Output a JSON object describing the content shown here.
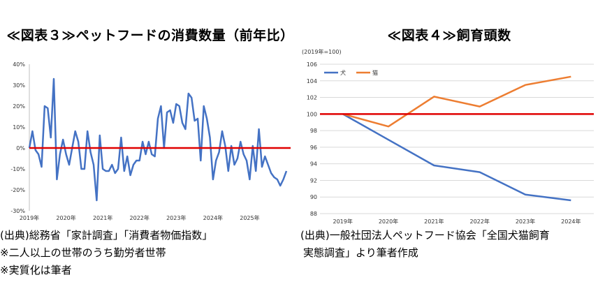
{
  "left": {
    "title": "≪図表３≫ペットフードの消費数量（前年比）",
    "notes": [
      "(出典)総務省「家計調査」「消費者物価指数」",
      "※二人以上の世帯のうち勤労者世帯",
      "※実質化は筆者"
    ]
  },
  "right": {
    "title": "≪図表４≫飼育頭数",
    "notes": [
      "(出典)一般社団法人ペットフード協会「全国犬猫飼育",
      "実態調査」より筆者作成"
    ]
  },
  "chart_data": [
    {
      "type": "line",
      "title": "≪図表３≫ペットフードの消費数量（前年比）",
      "x_tick_labels": [
        "2019年",
        "2020年",
        "2021年",
        "2022年",
        "2023年",
        "2024年",
        "2025年"
      ],
      "y_tick_labels": [
        "-30%",
        "-20%",
        "-10%",
        "0%",
        "10%",
        "20%",
        "30%",
        "40%"
      ],
      "y_ticks": [
        -30,
        -20,
        -10,
        0,
        10,
        20,
        30,
        40
      ],
      "ylim": [
        -30,
        40
      ],
      "unit": "%",
      "reference_line": 0,
      "x_start": "2019-01",
      "series": [
        {
          "color": "#4472C4",
          "values": [
            0,
            8,
            -1,
            -3,
            -9,
            20,
            19,
            5,
            33,
            -15,
            -3,
            4,
            -3,
            -8,
            0,
            8,
            3,
            -10,
            -10,
            8,
            -2,
            -8,
            -25,
            6,
            -10,
            -11,
            -11,
            -8,
            -12,
            -10,
            5,
            -11,
            -4,
            -13,
            -8,
            -6,
            -6,
            3,
            -3,
            3,
            -3,
            -4,
            14,
            20,
            0,
            17,
            18,
            12,
            21,
            20,
            12,
            9,
            26,
            24,
            13,
            14,
            -6,
            20,
            14,
            5,
            -15,
            -6,
            -2,
            8,
            1,
            -11,
            1,
            -8,
            -5,
            3,
            -3,
            -6,
            -15,
            1,
            -11,
            9,
            -9,
            -4,
            -8,
            -12,
            -14,
            -15,
            -18,
            -15,
            -11
          ]
        }
      ]
    },
    {
      "type": "line",
      "title": "≪図表４≫飼育頭数",
      "subtitle": "(2019年=100)",
      "categories": [
        "2019年",
        "2020年",
        "2021年",
        "2022年",
        "2023年",
        "2024年"
      ],
      "y_ticks": [
        88,
        90,
        92,
        94,
        96,
        98,
        100,
        102,
        104,
        106
      ],
      "ylim": [
        88,
        106
      ],
      "reference_line": 100,
      "legend_position": "top-left",
      "series": [
        {
          "name": "犬",
          "color": "#4472C4",
          "values": [
            100,
            96.9,
            93.8,
            93.0,
            90.3,
            89.6
          ]
        },
        {
          "name": "猫",
          "color": "#ED7D31",
          "values": [
            100,
            98.5,
            102.1,
            100.9,
            103.5,
            104.5
          ]
        }
      ]
    }
  ]
}
